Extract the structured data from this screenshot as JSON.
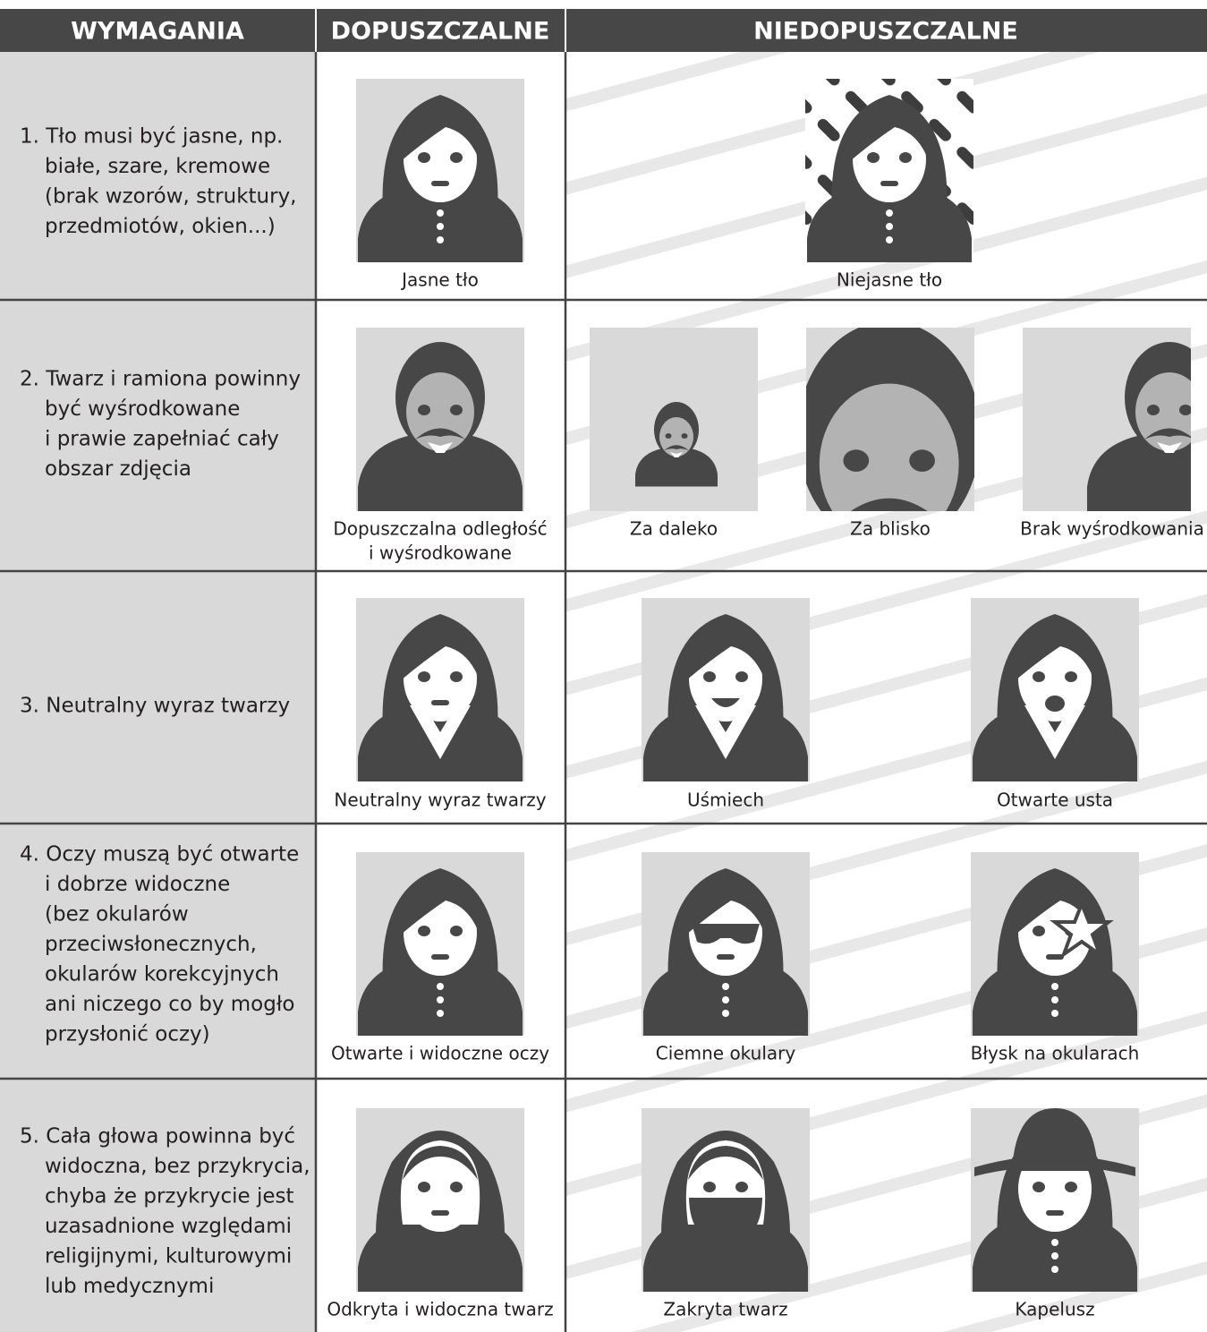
{
  "header": {
    "requirements": "WYMAGANIA",
    "acceptable": "DOPUSZCZALNE",
    "unacceptable": "NIEDOPUSZCZALNE"
  },
  "rows": [
    {
      "requirement": [
        "1. Tło musi być jasne, np.",
        "białe, szare, kremowe",
        "(brak wzorów, struktury,",
        "przedmiotów, okien...)"
      ],
      "acceptable": [
        "Jasne tło"
      ],
      "unacceptable": [
        [
          "Niejasne tło"
        ]
      ]
    },
    {
      "requirement": [
        "2. Twarz i ramiona powinny",
        "być wyśrodkowane",
        "i prawie zapełniać cały",
        "obszar zdjęcia"
      ],
      "acceptable": [
        "Dopuszczalna odległość",
        "i wyśrodkowane"
      ],
      "unacceptable": [
        [
          "Za daleko"
        ],
        [
          "Za blisko"
        ],
        [
          "Brak wyśrodkowania"
        ]
      ]
    },
    {
      "requirement": [
        "3. Neutralny wyraz twarzy"
      ],
      "acceptable": [
        "Neutralny wyraz twarzy"
      ],
      "unacceptable": [
        [
          "Uśmiech"
        ],
        [
          "Otwarte usta"
        ]
      ]
    },
    {
      "requirement": [
        "4. Oczy muszą być otwarte",
        "i dobrze widoczne",
        "(bez okularów",
        "przeciwsłonecznych,",
        "okularów korekcyjnych",
        "ani niczego co by mogło",
        "przysłonić oczy)"
      ],
      "acceptable": [
        "Otwarte i widoczne oczy"
      ],
      "unacceptable": [
        [
          "Ciemne okulary"
        ],
        [
          "Błysk na okularach"
        ]
      ]
    },
    {
      "requirement": [
        "5. Cała głowa powinna być",
        "widoczna, bez przykrycia,",
        "chyba że przykrycie jest",
        "uzasadnione względami",
        "religijnymi, kulturowymi",
        "lub medycznymi"
      ],
      "acceptable": [
        "Odkryta i widoczna twarz"
      ],
      "unacceptable": [
        [
          "Zakryta twarz"
        ],
        [
          "Kapelusz"
        ]
      ]
    }
  ]
}
